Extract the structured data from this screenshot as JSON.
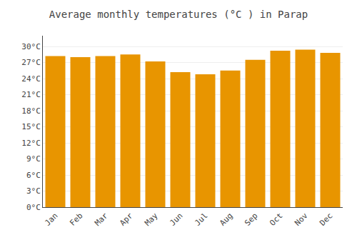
{
  "chart_data": {
    "type": "bar",
    "title": "Average monthly temperatures (°C ) in Parap",
    "categories": [
      "Jan",
      "Feb",
      "Mar",
      "Apr",
      "May",
      "Jun",
      "Jul",
      "Aug",
      "Sep",
      "Oct",
      "Nov",
      "Dec"
    ],
    "values": [
      28.2,
      28.0,
      28.2,
      28.5,
      27.2,
      25.2,
      24.8,
      25.5,
      27.5,
      29.2,
      29.4,
      28.8
    ],
    "color": "#E89500",
    "ylim": [
      0,
      32
    ],
    "yticks": [
      {
        "value": 0,
        "label": "0°C"
      },
      {
        "value": 3,
        "label": "3°C"
      },
      {
        "value": 6,
        "label": "6°C"
      },
      {
        "value": 9,
        "label": "9°C"
      },
      {
        "value": 12,
        "label": "12°C"
      },
      {
        "value": 15,
        "label": "15°C"
      },
      {
        "value": 18,
        "label": "18°C"
      },
      {
        "value": 21,
        "label": "21°C"
      },
      {
        "value": 24,
        "label": "24°C"
      },
      {
        "value": 27,
        "label": "27°C"
      },
      {
        "value": 30,
        "label": "30°C"
      }
    ],
    "grid": true
  }
}
